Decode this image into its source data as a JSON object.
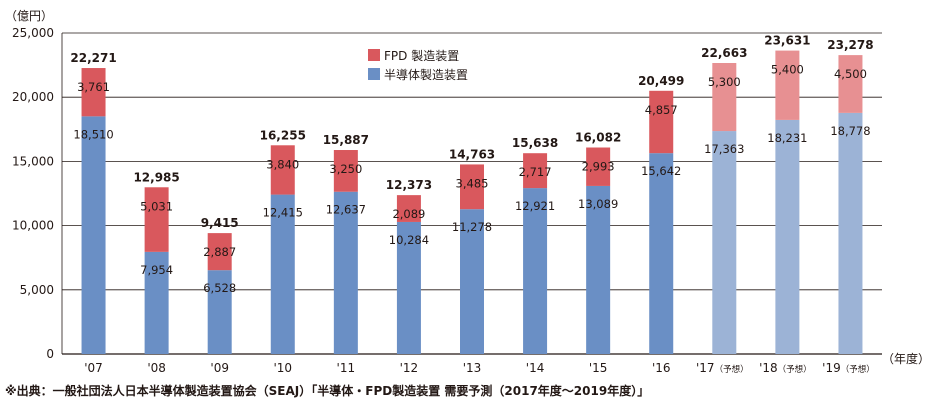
{
  "chart_data": {
    "type": "bar",
    "stacked": true,
    "y_unit": "（億円）",
    "x_unit": "（年度）",
    "ylim": [
      0,
      25000
    ],
    "yticks": [
      "0",
      "5,000",
      "10,000",
      "15,000",
      "20,000",
      "25,000"
    ],
    "ytick_values": [
      0,
      5000,
      10000,
      15000,
      20000,
      25000
    ],
    "grid": "horizontal",
    "legend_position": "top-center",
    "categories": [
      {
        "year": "'07",
        "suffix": ""
      },
      {
        "year": "'08",
        "suffix": ""
      },
      {
        "year": "'09",
        "suffix": ""
      },
      {
        "year": "'10",
        "suffix": ""
      },
      {
        "year": "'11",
        "suffix": ""
      },
      {
        "year": "'12",
        "suffix": ""
      },
      {
        "year": "'13",
        "suffix": ""
      },
      {
        "year": "'14",
        "suffix": ""
      },
      {
        "year": "'15",
        "suffix": ""
      },
      {
        "year": "'16",
        "suffix": ""
      },
      {
        "year": "'17",
        "suffix": "（予想）"
      },
      {
        "year": "'18",
        "suffix": "（予想）"
      },
      {
        "year": "'19",
        "suffix": "（予想）"
      }
    ],
    "forecast_flags": [
      false,
      false,
      false,
      false,
      false,
      false,
      false,
      false,
      false,
      false,
      true,
      true,
      true
    ],
    "series": [
      {
        "name": "半導体製造装置",
        "values": [
          18510,
          7954,
          6528,
          12415,
          12637,
          10284,
          11278,
          12921,
          13089,
          15642,
          17363,
          18231,
          18778
        ],
        "labels": [
          "18,510",
          "7,954",
          "6,528",
          "12,415",
          "12,637",
          "10,284",
          "11,278",
          "12,921",
          "13,089",
          "15,642",
          "17,363",
          "18,231",
          "18,778"
        ]
      },
      {
        "name": "FPD 製造装置",
        "values": [
          3761,
          5031,
          2887,
          3840,
          3250,
          2089,
          3485,
          2717,
          2993,
          4857,
          5300,
          5400,
          4500
        ],
        "labels": [
          "3,761",
          "5,031",
          "2,887",
          "3,840",
          "3,250",
          "2,089",
          "3,485",
          "2,717",
          "2,993",
          "4,857",
          "5,300",
          "5,400",
          "4,500"
        ]
      }
    ],
    "totals": [
      22271,
      12985,
      9415,
      16255,
      15887,
      12373,
      14763,
      15638,
      16082,
      20499,
      22663,
      23631,
      23278
    ],
    "total_labels": [
      "22,271",
      "12,985",
      "9,415",
      "16,255",
      "15,887",
      "12,373",
      "14,763",
      "15,638",
      "16,082",
      "20,499",
      "22,663",
      "23,631",
      "23,278"
    ]
  },
  "colors": {
    "semiconductor": "#6a8fc5",
    "fpd": "#d9585d",
    "semiconductor_forecast": "#9cb3d6",
    "fpd_forecast": "#e79092",
    "grid": "#231815"
  },
  "source": "※出典：一般社団法人日本半導体製造装置協会（SEAJ）「半導体・FPD製造装置 需要予測（2017年度～2019年度）」"
}
